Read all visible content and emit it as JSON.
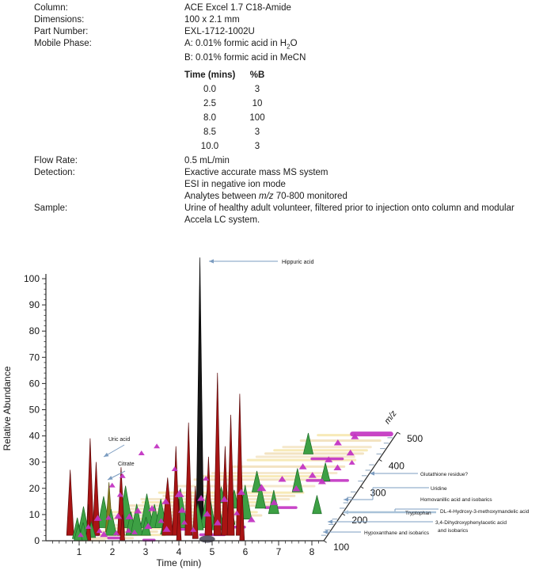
{
  "specs": {
    "rows": [
      {
        "label": "Column:",
        "value": "ACE Excel 1.7 C18-Amide"
      },
      {
        "label": "Dimensions:",
        "value": "100 x 2.1 mm"
      },
      {
        "label": "Part Number:",
        "value": "EXL-1712-1002U"
      },
      {
        "label": "Mobile Phase:",
        "value_pre": "A: 0.01% formic acid in H",
        "value_sub": "2",
        "value_post": "O"
      },
      {
        "label": "",
        "value": "B: 0.01% formic acid in MeCN"
      }
    ],
    "gradient_table": {
      "headers": [
        "Time (mins)",
        "%B"
      ],
      "rows": [
        [
          "0.0",
          "3"
        ],
        [
          "2.5",
          "10"
        ],
        [
          "8.0",
          "100"
        ],
        [
          "8.5",
          "3"
        ],
        [
          "10.0",
          "3"
        ]
      ]
    },
    "flow_rate": {
      "label": "Flow Rate:",
      "value": "0.5 mL/min"
    },
    "detection": {
      "label": "Detection:",
      "line1": "Exactive accurate mass MS system",
      "line2": "ESI in negative ion mode",
      "line3_pre": "Analytes between ",
      "line3_italic": "m/z",
      "line3_post": " 70-800 monitored"
    },
    "sample": {
      "label": "Sample:",
      "value": "Urine of healthy adult volunteer, filtered prior to injection onto column and modular Accela LC system."
    }
  },
  "chart_data": {
    "type": "area",
    "subtype": "3d-waterfall-lc-ms-chromatogram",
    "title": "",
    "x_axis": {
      "label": "Time (min)",
      "min": 0,
      "max": 8.3,
      "major_ticks": [
        1,
        2,
        3,
        4,
        5,
        6,
        7,
        8
      ],
      "minor_step": 0.2
    },
    "y_axis": {
      "label": "Relative Abundance",
      "min": 0,
      "max": 100,
      "major_step": 10,
      "minor_step": 2
    },
    "z_axis": {
      "label": "m/z",
      "min": 100,
      "max": 500,
      "ticks": [
        100,
        200,
        300,
        400,
        500
      ],
      "minor_step": 20
    },
    "legend_position": "none",
    "grid": false,
    "peak_annotations": [
      {
        "text": "Hippuric acid",
        "time_min": 4.2,
        "rel_abundance": 100
      },
      {
        "text": "Uric acid",
        "time_min": 1.4,
        "rel_abundance": 28
      },
      {
        "text": "Citrate",
        "time_min": 1.72,
        "rel_abundance": 19
      }
    ],
    "mz_annotations": [
      {
        "lines": [
          "Glutathione residue?"
        ]
      },
      {
        "lines": [
          "Uridine"
        ]
      },
      {
        "lines": [
          "Homovanillic acid and isobarics"
        ]
      },
      {
        "lines": [
          "Tryptophan"
        ]
      },
      {
        "lines": [
          "DL-4-Hydroxy-3-methoxymandelic acid"
        ]
      },
      {
        "lines": [
          "3,4-Dihydroxyphenylacetic acid",
          "and isobarics"
        ]
      },
      {
        "lines": [
          "Hypoxanthane and isobarics"
        ]
      }
    ],
    "series": [
      {
        "name": "hippuric-acid-peak",
        "color": "#161616",
        "stroke": "#000000",
        "peaks": [
          [
            4.2,
            100,
            0.195
          ]
        ]
      },
      {
        "name": "red-peaks",
        "color": "#a81414",
        "stroke": "#5c0909",
        "peaks": [
          [
            0.62,
            25,
            0.05
          ],
          [
            1.22,
            37,
            0.05
          ],
          [
            1.4,
            28,
            0.05
          ],
          [
            2.15,
            26,
            0.05
          ],
          [
            3.55,
            22,
            0.05,
            7
          ],
          [
            3.8,
            34,
            0.05
          ],
          [
            4.18,
            43,
            0.05
          ],
          [
            4.78,
            30,
            0.05
          ],
          [
            5.05,
            62,
            0.05
          ],
          [
            5.28,
            34,
            0.05
          ],
          [
            5.45,
            46,
            0.05
          ],
          [
            5.72,
            54,
            0.05
          ],
          [
            1.28,
            14,
            0,
            3
          ],
          [
            2.3,
            10,
            0,
            3
          ],
          [
            4.0,
            16,
            0,
            3
          ],
          [
            4.45,
            20,
            0.02,
            3.5
          ],
          [
            5.9,
            20,
            0,
            3
          ]
        ]
      },
      {
        "name": "citrate-peak",
        "color": "#8a7d1e",
        "stroke": "#5f5513",
        "peaks": [
          [
            1.72,
            19,
            0.08
          ]
        ]
      },
      {
        "name": "green-peaks",
        "color": "#3da044",
        "stroke": "#1c6b26",
        "peaks": [
          [
            0.9,
            8,
            0.02
          ],
          [
            1.02,
            11,
            0.05
          ],
          [
            1.12,
            7,
            0
          ],
          [
            1.47,
            12,
            0.12
          ],
          [
            1.85,
            10,
            0.05
          ],
          [
            2.13,
            16,
            0.12
          ],
          [
            2.45,
            9,
            0.05
          ],
          [
            2.62,
            12,
            0.05
          ],
          [
            2.77,
            13,
            0.12
          ],
          [
            3.0,
            9,
            0.12
          ],
          [
            3.19,
            11,
            0.12
          ],
          [
            3.45,
            7,
            0.06
          ],
          [
            3.78,
            15,
            0.12
          ],
          [
            4.35,
            10,
            0.1
          ],
          [
            4.61,
            16,
            0.12
          ],
          [
            4.95,
            12,
            0.1
          ],
          [
            5.2,
            9,
            0.15
          ],
          [
            5.55,
            13,
            0.2
          ],
          [
            5.79,
            9,
            0.3
          ],
          [
            6.3,
            9,
            0.25
          ],
          [
            6.57,
            9,
            0.45
          ],
          [
            6.12,
            8,
            0.8
          ],
          [
            7.19,
            7,
            0.55
          ],
          [
            7.6,
            7,
            0.25
          ],
          [
            1.3,
            6,
            0.03
          ],
          [
            0.97,
            6,
            0
          ],
          [
            2.9,
            7,
            0.05
          ],
          [
            5.0,
            7,
            0.3
          ],
          [
            5.35,
            8,
            0.45
          ],
          [
            4.5,
            6,
            0.35
          ]
        ]
      }
    ],
    "markers_magenta": [
      [
        1.0,
        0.02,
        2,
        4
      ],
      [
        1.1,
        0.08,
        4,
        4
      ],
      [
        1.25,
        0.14,
        6,
        5
      ],
      [
        1.5,
        0.05,
        3,
        4
      ],
      [
        1.62,
        0.12,
        10,
        4
      ],
      [
        1.7,
        0.02,
        2,
        5
      ],
      [
        1.95,
        0.1,
        14,
        5
      ],
      [
        2.05,
        0.03,
        3,
        4
      ],
      [
        2.2,
        0.14,
        8,
        5
      ],
      [
        2.35,
        0.06,
        2,
        4
      ],
      [
        2.5,
        0.12,
        18,
        5
      ],
      [
        2.6,
        0.03,
        4,
        4
      ],
      [
        2.75,
        0.2,
        10,
        5
      ],
      [
        2.9,
        0.08,
        4,
        5
      ],
      [
        3.05,
        0.25,
        12,
        5
      ],
      [
        3.2,
        0.12,
        6,
        4
      ],
      [
        3.35,
        0.3,
        14,
        6
      ],
      [
        3.5,
        0.06,
        3,
        5
      ],
      [
        3.65,
        0.2,
        8,
        5
      ],
      [
        3.9,
        0.12,
        4,
        4
      ],
      [
        4.05,
        0.28,
        12,
        5
      ],
      [
        4.3,
        0.06,
        3,
        4
      ],
      [
        4.45,
        0.18,
        6,
        5
      ],
      [
        4.7,
        0.3,
        8,
        5
      ],
      [
        4.9,
        0.12,
        3,
        5
      ],
      [
        5.1,
        0.35,
        10,
        5
      ],
      [
        5.3,
        0.2,
        5,
        4
      ],
      [
        5.6,
        0.4,
        8,
        6
      ],
      [
        5.85,
        0.15,
        3,
        5
      ],
      [
        6.0,
        0.5,
        6,
        5
      ],
      [
        6.2,
        0.3,
        4,
        5
      ],
      [
        6.4,
        0.6,
        8,
        5
      ],
      [
        6.6,
        0.42,
        5,
        5
      ],
      [
        6.8,
        0.55,
        4,
        5
      ],
      [
        7.0,
        0.68,
        6,
        5
      ],
      [
        7.2,
        0.5,
        3,
        5
      ],
      [
        7.4,
        0.62,
        4,
        5
      ],
      [
        7.5,
        0.75,
        5,
        5
      ],
      [
        7.7,
        0.68,
        3,
        4
      ],
      [
        6.9,
        0.85,
        4,
        5
      ],
      [
        7.3,
        0.9,
        5,
        5
      ],
      [
        1.55,
        0.2,
        40,
        4
      ],
      [
        1.75,
        0.25,
        45,
        4
      ],
      [
        1.9,
        0.15,
        35,
        4
      ],
      [
        2.1,
        0.35,
        60,
        4
      ],
      [
        2.45,
        0.4,
        62,
        4
      ],
      [
        3.1,
        0.35,
        40,
        4
      ],
      [
        4.15,
        0.3,
        35,
        4
      ]
    ],
    "streaks_magenta": [
      [
        7.0,
        8.3,
        0.97
      ],
      [
        6.6,
        7.9,
        0.55
      ],
      [
        5.9,
        6.9,
        0.3
      ],
      [
        2.2,
        2.9,
        0.15
      ],
      [
        1.05,
        1.5,
        0.05
      ],
      [
        3.3,
        4.0,
        0.1
      ],
      [
        4.5,
        5.3,
        0.05
      ],
      [
        6.3,
        7.3,
        0.75
      ],
      [
        1.8,
        2.3,
        0.02
      ],
      [
        4.0,
        4.6,
        0.2
      ],
      [
        2.9,
        3.3,
        0
      ],
      [
        5.35,
        5.75,
        0.12
      ]
    ],
    "ribbons": [
      [
        0.9,
        2.6,
        0.02
      ],
      [
        0.95,
        3.2,
        0.08
      ],
      [
        1.0,
        4.5,
        0.14
      ],
      [
        1.1,
        5.2,
        0.2
      ],
      [
        1.3,
        5.8,
        0.26
      ],
      [
        1.6,
        6.2,
        0.32
      ],
      [
        2.0,
        6.5,
        0.38
      ],
      [
        2.4,
        6.8,
        0.44
      ],
      [
        2.8,
        7.0,
        0.5
      ],
      [
        3.2,
        7.2,
        0.56
      ],
      [
        3.6,
        7.4,
        0.62
      ],
      [
        4.0,
        7.5,
        0.68
      ],
      [
        4.4,
        7.7,
        0.74
      ],
      [
        4.8,
        7.8,
        0.8
      ],
      [
        5.2,
        7.9,
        0.86
      ],
      [
        5.6,
        8.05,
        0.92
      ],
      [
        6.0,
        8.15,
        0.97
      ],
      [
        0.95,
        2.0,
        0.05
      ],
      [
        1.5,
        4.0,
        0.11
      ],
      [
        2.2,
        5.5,
        0.17
      ],
      [
        3.0,
        6.0,
        0.23
      ],
      [
        1.2,
        3.5,
        0.05
      ],
      [
        2.6,
        6.6,
        0.41
      ],
      [
        3.4,
        7.1,
        0.59
      ],
      [
        4.6,
        7.6,
        0.77
      ],
      [
        1.8,
        5.0,
        0.29
      ],
      [
        2.1,
        6.0,
        0.35
      ],
      [
        5.0,
        7.85,
        0.83
      ],
      [
        0.92,
        1.8,
        0
      ],
      [
        1.4,
        4.8,
        0.23
      ]
    ],
    "gray_hump": [
      4.85,
      0
    ],
    "colors": {
      "red": "#a81414",
      "green": "#3da044",
      "magenta": "#c335c3",
      "olive": "#8a7d1e",
      "black_peak": "#161616",
      "ribbon": "#f5e5ac",
      "annotation_line": "#7b9cc0",
      "annotation_thick_line": "#a9c2d8",
      "axis": "#2b2b2b",
      "z_minor_tick": "#93aac2"
    }
  }
}
